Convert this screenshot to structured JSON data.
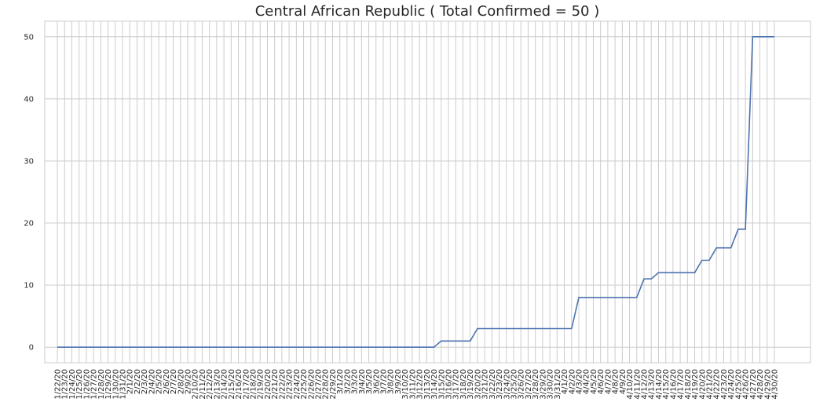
{
  "chart_data": {
    "type": "line",
    "title": "Central African Republic ( Total Confirmed = 50 )",
    "categories": [
      "1/22/20",
      "1/23/20",
      "1/24/20",
      "1/25/20",
      "1/26/20",
      "1/27/20",
      "1/28/20",
      "1/29/20",
      "1/30/20",
      "1/31/20",
      "2/1/20",
      "2/2/20",
      "2/3/20",
      "2/4/20",
      "2/5/20",
      "2/6/20",
      "2/7/20",
      "2/8/20",
      "2/9/20",
      "2/10/20",
      "2/11/20",
      "2/12/20",
      "2/13/20",
      "2/14/20",
      "2/15/20",
      "2/16/20",
      "2/17/20",
      "2/18/20",
      "2/19/20",
      "2/20/20",
      "2/21/20",
      "2/22/20",
      "2/23/20",
      "2/24/20",
      "2/25/20",
      "2/26/20",
      "2/27/20",
      "2/28/20",
      "2/29/20",
      "3/1/20",
      "3/2/20",
      "3/3/20",
      "3/4/20",
      "3/5/20",
      "3/6/20",
      "3/7/20",
      "3/8/20",
      "3/9/20",
      "3/10/20",
      "3/11/20",
      "3/12/20",
      "3/13/20",
      "3/14/20",
      "3/15/20",
      "3/16/20",
      "3/17/20",
      "3/18/20",
      "3/19/20",
      "3/20/20",
      "3/21/20",
      "3/22/20",
      "3/23/20",
      "3/24/20",
      "3/25/20",
      "3/26/20",
      "3/27/20",
      "3/28/20",
      "3/29/20",
      "3/30/20",
      "3/31/20",
      "4/1/20",
      "4/2/20",
      "4/3/20",
      "4/4/20",
      "4/5/20",
      "4/6/20",
      "4/7/20",
      "4/8/20",
      "4/9/20",
      "4/10/20",
      "4/11/20",
      "4/12/20",
      "4/13/20",
      "4/14/20",
      "4/15/20",
      "4/16/20",
      "4/17/20",
      "4/18/20",
      "4/19/20",
      "4/20/20",
      "4/21/20",
      "4/22/20",
      "4/23/20",
      "4/24/20",
      "4/25/20",
      "4/26/20",
      "4/27/20",
      "4/28/20",
      "4/29/20",
      "4/30/20"
    ],
    "series": [
      {
        "color": "#4c72b0",
        "values": [
          0,
          0,
          0,
          0,
          0,
          0,
          0,
          0,
          0,
          0,
          0,
          0,
          0,
          0,
          0,
          0,
          0,
          0,
          0,
          0,
          0,
          0,
          0,
          0,
          0,
          0,
          0,
          0,
          0,
          0,
          0,
          0,
          0,
          0,
          0,
          0,
          0,
          0,
          0,
          0,
          0,
          0,
          0,
          0,
          0,
          0,
          0,
          0,
          0,
          0,
          0,
          0,
          0,
          1,
          1,
          1,
          1,
          1,
          3,
          3,
          3,
          3,
          3,
          3,
          3,
          3,
          3,
          3,
          3,
          3,
          3,
          3,
          8,
          8,
          8,
          8,
          8,
          8,
          8,
          8,
          8,
          11,
          11,
          12,
          12,
          12,
          12,
          12,
          12,
          14,
          14,
          16,
          16,
          16,
          19,
          19,
          50,
          50,
          50,
          50
        ]
      }
    ],
    "ylim": [
      -2.5,
      52.5
    ],
    "yticks": [
      0,
      10,
      20,
      30,
      40,
      50
    ],
    "grid": true
  }
}
